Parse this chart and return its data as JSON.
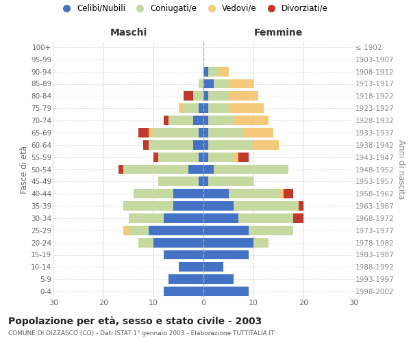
{
  "age_groups": [
    "0-4",
    "5-9",
    "10-14",
    "15-19",
    "20-24",
    "25-29",
    "30-34",
    "35-39",
    "40-44",
    "45-49",
    "50-54",
    "55-59",
    "60-64",
    "65-69",
    "70-74",
    "75-79",
    "80-84",
    "85-89",
    "90-94",
    "95-99",
    "100+"
  ],
  "birth_years": [
    "1998-2002",
    "1993-1997",
    "1988-1992",
    "1983-1987",
    "1978-1982",
    "1973-1977",
    "1968-1972",
    "1963-1967",
    "1958-1962",
    "1953-1957",
    "1948-1952",
    "1943-1947",
    "1938-1942",
    "1933-1937",
    "1928-1932",
    "1923-1927",
    "1918-1922",
    "1913-1917",
    "1908-1912",
    "1903-1907",
    "≤ 1902"
  ],
  "male_celibi": [
    8,
    7,
    5,
    8,
    10,
    11,
    8,
    6,
    6,
    1,
    3,
    1,
    2,
    1,
    2,
    1,
    0,
    0,
    0,
    0,
    0
  ],
  "male_coniugati": [
    0,
    0,
    0,
    0,
    3,
    4,
    7,
    10,
    8,
    8,
    13,
    8,
    9,
    9,
    5,
    3,
    2,
    1,
    0,
    0,
    0
  ],
  "male_vedovi": [
    0,
    0,
    0,
    0,
    0,
    1,
    0,
    0,
    0,
    0,
    0,
    0,
    0,
    1,
    0,
    1,
    0,
    0,
    0,
    0,
    0
  ],
  "male_divorziati": [
    0,
    0,
    0,
    0,
    0,
    0,
    0,
    0,
    0,
    0,
    1,
    1,
    1,
    2,
    1,
    0,
    2,
    0,
    0,
    0,
    0
  ],
  "female_nubili": [
    9,
    6,
    4,
    9,
    10,
    9,
    7,
    6,
    5,
    1,
    2,
    1,
    1,
    1,
    1,
    1,
    1,
    2,
    1,
    0,
    0
  ],
  "female_coniugate": [
    0,
    0,
    0,
    0,
    3,
    9,
    11,
    13,
    10,
    9,
    15,
    5,
    9,
    7,
    5,
    4,
    4,
    3,
    2,
    0,
    0
  ],
  "female_vedove": [
    0,
    0,
    0,
    0,
    0,
    0,
    0,
    0,
    1,
    0,
    0,
    1,
    5,
    6,
    7,
    7,
    6,
    5,
    2,
    0,
    0
  ],
  "female_divorziate": [
    0,
    0,
    0,
    0,
    0,
    0,
    2,
    1,
    2,
    0,
    0,
    2,
    0,
    0,
    0,
    0,
    0,
    0,
    0,
    0,
    0
  ],
  "color_celibi": "#4472c4",
  "color_coniugati": "#c5d9a0",
  "color_vedovi": "#f5c97a",
  "color_divorziati": "#c0392b",
  "xlim": 30,
  "title": "Popolazione per età, sesso e stato civile - 2003",
  "subtitle": "COMUNE DI DIZZASCO (CO) - Dati ISTAT 1° gennaio 2003 - Elaborazione TUTTITALIA.IT",
  "ylabel_left": "Fasce di età",
  "ylabel_right": "Anni di nascita",
  "label_male": "Maschi",
  "label_female": "Femmine",
  "legend_labels": [
    "Celibi/Nubili",
    "Coniugati/e",
    "Vedovi/e",
    "Divorziati/e"
  ],
  "bg_color": "#ffffff",
  "grid_color": "#cccccc"
}
